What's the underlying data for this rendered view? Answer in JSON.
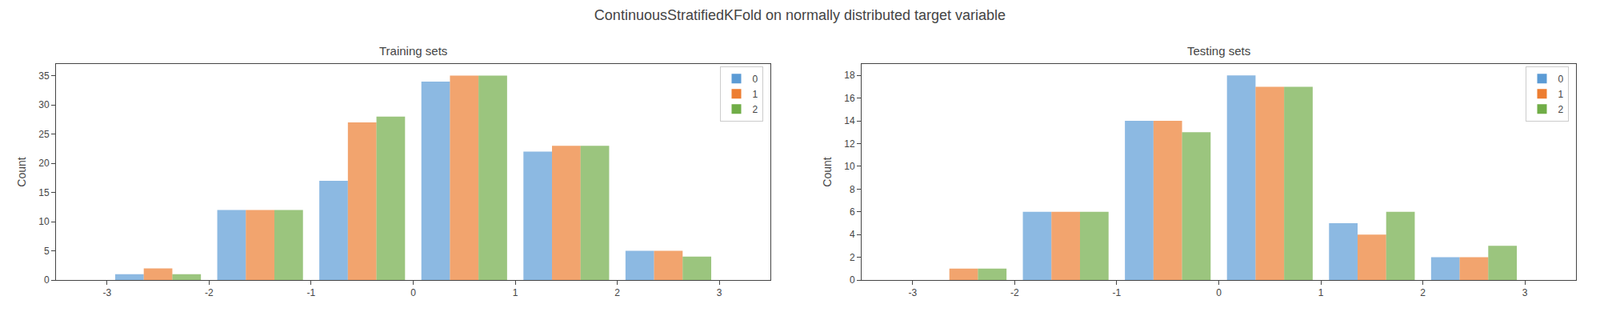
{
  "title": "ContinuousStratifiedKFold on normally distributed target variable",
  "chart_data": [
    {
      "type": "bar",
      "title": "Training sets",
      "ylabel": "Count",
      "x": [
        -2.5,
        -1.5,
        -0.5,
        0.5,
        1.5,
        2.5
      ],
      "series": [
        {
          "name": "0",
          "color": "#5b9bd5",
          "values": [
            1,
            12,
            17,
            34,
            22,
            5
          ]
        },
        {
          "name": "1",
          "color": "#ed7d31",
          "values": [
            2,
            12,
            27,
            35,
            23,
            5
          ]
        },
        {
          "name": "2",
          "color": "#70ad47",
          "values": [
            1,
            12,
            28,
            35,
            23,
            4
          ]
        }
      ],
      "xlim": [
        -3.5,
        3.5
      ],
      "xticks": [
        -3,
        -2,
        -1,
        0,
        1,
        2,
        3
      ],
      "ylim": [
        0,
        37
      ],
      "yticks": [
        0,
        5,
        10,
        15,
        20,
        25,
        30,
        35
      ],
      "grid": false,
      "legend": "upper right"
    },
    {
      "type": "bar",
      "title": "Testing sets",
      "ylabel": "Count",
      "x": [
        -2.5,
        -1.5,
        -0.5,
        0.5,
        1.5,
        2.5
      ],
      "series": [
        {
          "name": "0",
          "color": "#5b9bd5",
          "values": [
            0,
            6,
            14,
            18,
            5,
            2
          ]
        },
        {
          "name": "1",
          "color": "#ed7d31",
          "values": [
            1,
            6,
            14,
            17,
            4,
            2
          ]
        },
        {
          "name": "2",
          "color": "#70ad47",
          "values": [
            1,
            6,
            13,
            17,
            6,
            3
          ]
        }
      ],
      "xlim": [
        -3.5,
        3.5
      ],
      "xticks": [
        -3,
        -2,
        -1,
        0,
        1,
        2,
        3
      ],
      "ylim": [
        0,
        19
      ],
      "yticks": [
        0,
        2,
        4,
        6,
        8,
        10,
        12,
        14,
        16,
        18
      ],
      "grid": false,
      "legend": "upper right"
    }
  ]
}
